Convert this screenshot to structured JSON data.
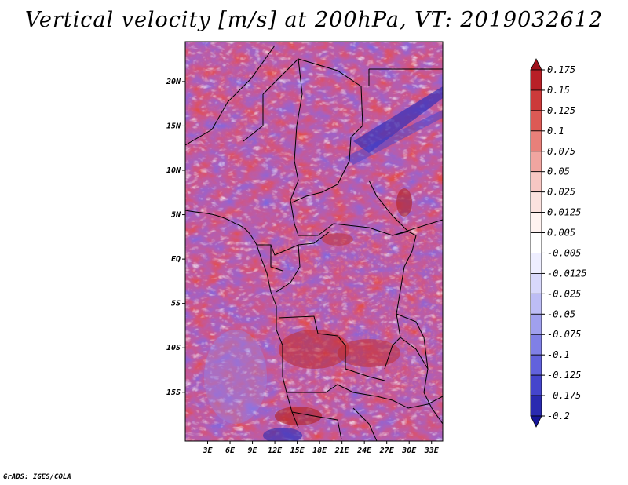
{
  "title": "Vertical velocity [m/s] at 200hPa, VT: 2019032612",
  "footer": "GrADS: IGES/COLA",
  "latitude_labels": [
    "20N",
    "15N",
    "10N",
    "5N",
    "EQ",
    "5S",
    "10S",
    "15S"
  ],
  "latitude_values": [
    20,
    15,
    10,
    5,
    0,
    -5,
    -10,
    -15
  ],
  "longitude_labels": [
    "3E",
    "6E",
    "9E",
    "12E",
    "15E",
    "18E",
    "21E",
    "24E",
    "27E",
    "30E",
    "33E"
  ],
  "longitude_values": [
    3,
    6,
    9,
    12,
    15,
    18,
    21,
    24,
    27,
    30,
    33
  ],
  "map_extent": {
    "lon_min": 0,
    "lon_max": 34.5,
    "lat_min": -20.5,
    "lat_max": 24.5
  },
  "colorbar": {
    "labels": [
      "0.175",
      "0.15",
      "0.125",
      "0.1",
      "0.075",
      "0.05",
      "0.025",
      "0.0125",
      "0.005",
      "-0.005",
      "-0.0125",
      "-0.025",
      "-0.05",
      "-0.075",
      "-0.1",
      "-0.125",
      "-0.175",
      "-0.2"
    ],
    "colors": [
      "#a0101a",
      "#b82027",
      "#cc3a3a",
      "#dc5a55",
      "#e8807a",
      "#f0a5a0",
      "#f7c7c3",
      "#fbe2df",
      "#fff3f1",
      "#ffffff",
      "#eeeeff",
      "#d8d8fb",
      "#bdbdf5",
      "#a0a0ee",
      "#8080e6",
      "#6262dc",
      "#4545cc",
      "#2a2ab0",
      "#16169a"
    ]
  }
}
